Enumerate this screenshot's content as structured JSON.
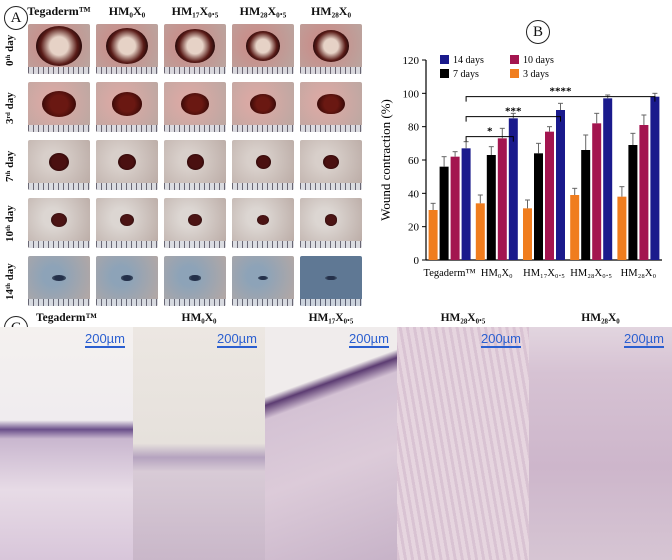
{
  "panel_labels": {
    "a": "A",
    "b": "B",
    "c": "C"
  },
  "panel_a": {
    "columns": [
      "Tegaderm™",
      "HM₀X₀",
      "HM₁₇X₀.₅",
      "HM₂₈X₀.₅",
      "HM₂₈X₀"
    ],
    "rows": [
      "0ᵗʰ day",
      "3ʳᵈ day",
      "7ᵗʰ day",
      "10ᵗʰ day",
      "14ᵗʰ day"
    ]
  },
  "panel_c": {
    "columns": [
      "Tegaderm™",
      "HM₀X₀",
      "HM₁₇X₀.₅",
      "HM₂₈X₀.₅",
      "HM₂₈X₀"
    ],
    "scale_label": "200µm"
  },
  "colors": {
    "day14": "#1a1a8c",
    "day10": "#a3154f",
    "day7": "#000000",
    "day3": "#f07d1e",
    "scale": "#2b5fd0"
  },
  "chart_data": {
    "type": "bar",
    "ylabel": "Wound contraction (%)",
    "ylim": [
      0,
      120
    ],
    "yticks": [
      "0",
      "20",
      "40",
      "60",
      "80",
      "100",
      "120"
    ],
    "categories": [
      "Tegaderm™",
      "HM₀X₀",
      "HM₁₇X₀.₅",
      "HM₂₈X₀.₅",
      "HM₂₈X₀"
    ],
    "legend": [
      "14 days",
      "10 days",
      "7 days",
      "3 days"
    ],
    "legend_position": "top-left",
    "series": [
      {
        "name": "3 days",
        "color": "#f07d1e",
        "values": [
          30,
          34,
          31,
          39,
          38
        ],
        "errors": [
          4,
          5,
          5,
          4,
          6
        ]
      },
      {
        "name": "7 days",
        "color": "#000000",
        "values": [
          56,
          63,
          64,
          66,
          69
        ],
        "errors": [
          6,
          5,
          6,
          9,
          7
        ]
      },
      {
        "name": "10 days",
        "color": "#a3154f",
        "values": [
          62,
          73,
          77,
          82,
          81
        ],
        "errors": [
          3,
          6,
          3,
          6,
          6
        ]
      },
      {
        "name": "14 days",
        "color": "#1a1a8c",
        "values": [
          67,
          85,
          90,
          97,
          98
        ],
        "errors": [
          4,
          3,
          4,
          2,
          2
        ]
      }
    ],
    "significance": [
      "*",
      "***",
      "****"
    ]
  }
}
